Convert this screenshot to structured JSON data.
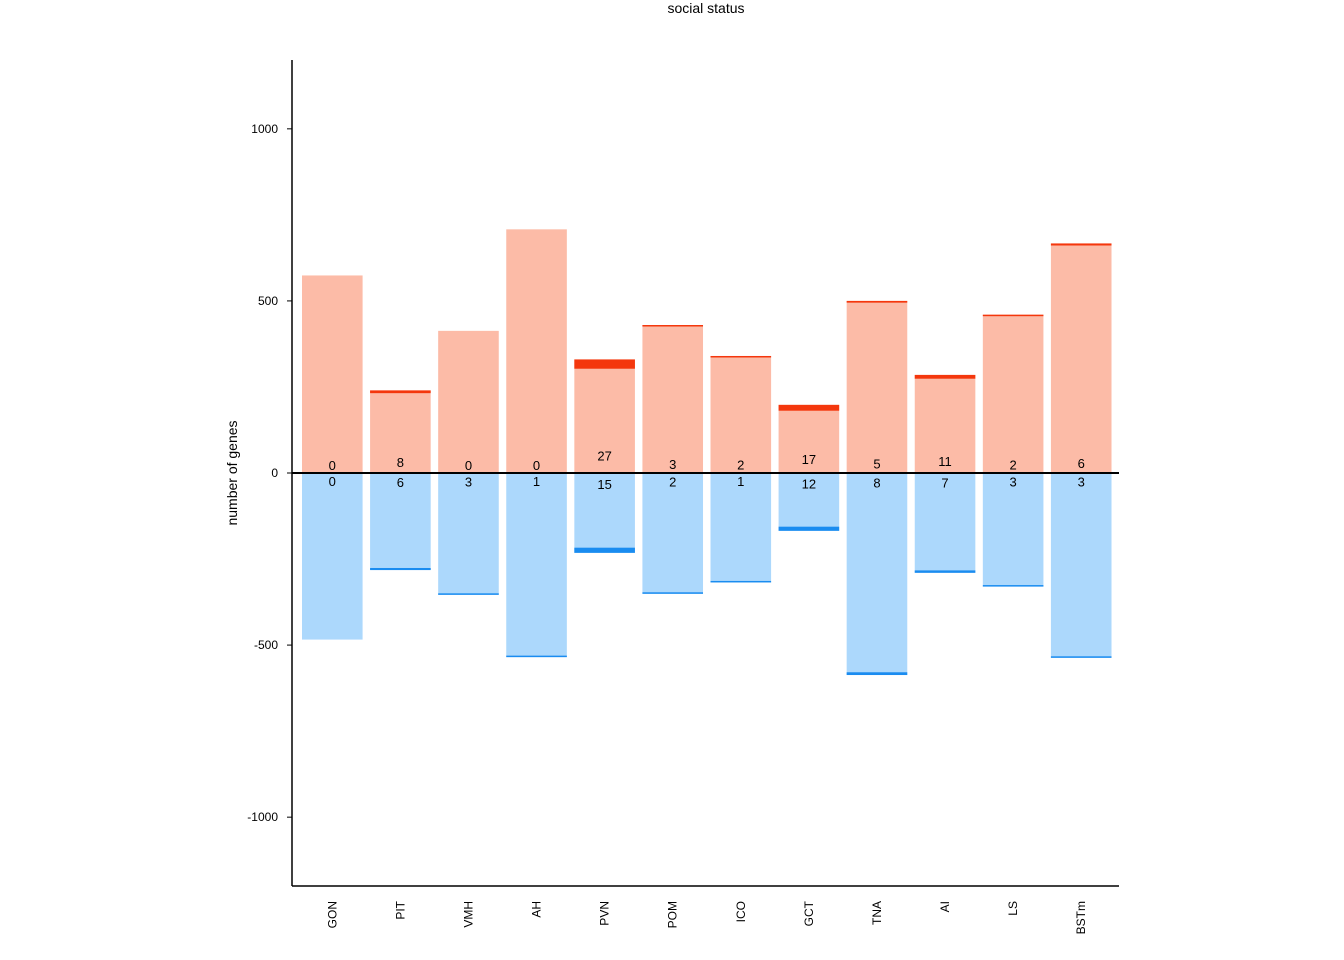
{
  "chart_data": {
    "type": "bar",
    "title": "social status",
    "xlabel": "",
    "ylabel": "number of genes",
    "ylim": [
      -1200,
      1200
    ],
    "yticks": [
      1000,
      500,
      0,
      -500,
      -1000
    ],
    "grid": false,
    "categories": [
      "GON",
      "PIT",
      "VMH",
      "AH",
      "PVN",
      "POM",
      "ICO",
      "GCT",
      "TNA",
      "AI",
      "LS",
      "BSTm"
    ],
    "series": [
      {
        "direction": "up",
        "values": [
          574,
          240,
          413,
          708,
          330,
          430,
          340,
          198,
          500,
          285,
          460,
          667
        ]
      },
      {
        "direction": "down",
        "values": [
          -484,
          -282,
          -354,
          -535,
          -232,
          -351,
          -318,
          -168,
          -587,
          -290,
          -330,
          -537
        ]
      }
    ],
    "highlight": {
      "up": [
        0,
        8,
        0,
        0,
        27,
        3,
        2,
        17,
        5,
        11,
        2,
        6
      ],
      "down": [
        0,
        6,
        3,
        1,
        15,
        2,
        1,
        12,
        8,
        7,
        3,
        3
      ]
    },
    "colors": {
      "up_bar": "#fcbba7",
      "up_highlight": "#f4370d",
      "down_bar": "#acd8fc",
      "down_highlight": "#1a8cf0",
      "axis": "#000000"
    }
  }
}
